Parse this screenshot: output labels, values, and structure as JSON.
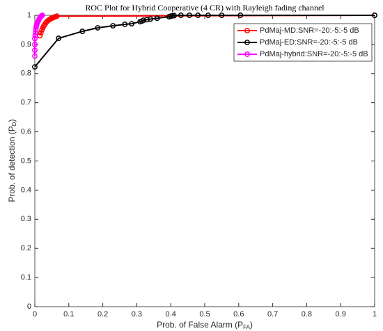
{
  "chart_data": {
    "type": "line",
    "title": "ROC Plot for Hybrid Cooperative (4 CR) with Rayleigh fading channel",
    "xlabel": {
      "text": "Prob. of False Alarm (P",
      "sub": "FA",
      "end": ")"
    },
    "ylabel": {
      "text": "Prob. of detection (P",
      "sub": "D",
      "end": ")"
    },
    "xlim": [
      0,
      1
    ],
    "ylim": [
      0,
      1
    ],
    "xticks": [
      0,
      0.1,
      0.2,
      0.3,
      0.4,
      0.5,
      0.6,
      0.7,
      0.8,
      0.9,
      1
    ],
    "yticks": [
      0,
      0.1,
      0.2,
      0.3,
      0.4,
      0.5,
      0.6,
      0.7,
      0.8,
      0.9,
      1
    ],
    "legend": "upper right",
    "series": [
      {
        "name": "PdMaj-MD:SNR=-20:-5:-5 dB",
        "color": "#ff0000",
        "x": [
          0.015,
          0.018,
          0.021,
          0.024,
          0.027,
          0.03,
          0.033,
          0.036,
          0.04,
          0.044,
          0.048,
          0.052,
          0.056,
          0.06,
          0.065,
          1
        ],
        "values": [
          0.93,
          0.94,
          0.95,
          0.958,
          0.965,
          0.97,
          0.975,
          0.979,
          0.983,
          0.986,
          0.989,
          0.991,
          0.993,
          0.995,
          0.997,
          1
        ]
      },
      {
        "name": "PdMaj-ED:SNR=-20:-5:-5 dB",
        "color": "#000000",
        "x": [
          0,
          0.07,
          0.14,
          0.185,
          0.23,
          0.265,
          0.285,
          0.31,
          0.315,
          0.32,
          0.33,
          0.34,
          0.36,
          0.395,
          0.4,
          0.405,
          0.41,
          0.43,
          0.455,
          0.48,
          0.51,
          0.55,
          0.605,
          1
        ],
        "values": [
          0.823,
          0.921,
          0.945,
          0.957,
          0.964,
          0.969,
          0.971,
          0.978,
          0.98,
          0.983,
          0.985,
          0.987,
          0.99,
          0.995,
          0.997,
          0.998,
          0.999,
          1,
          1,
          1,
          1,
          1,
          1,
          1
        ]
      },
      {
        "name": "PdMaj-hybrid:SNR=-20:-5:-5 dB",
        "color": "#ff00ff",
        "x": [
          0,
          0,
          0,
          0,
          0.001,
          0.002,
          0.003,
          0.004,
          0.005,
          0.006,
          0.008,
          0.01,
          0.012,
          0.014,
          0.016,
          0.018,
          0.02,
          0.022
        ],
        "values": [
          0.86,
          0.88,
          0.9,
          0.92,
          0.93,
          0.94,
          0.95,
          0.96,
          0.965,
          0.97,
          0.975,
          0.98,
          0.985,
          0.99,
          0.993,
          0.996,
          0.998,
          1
        ]
      }
    ]
  }
}
